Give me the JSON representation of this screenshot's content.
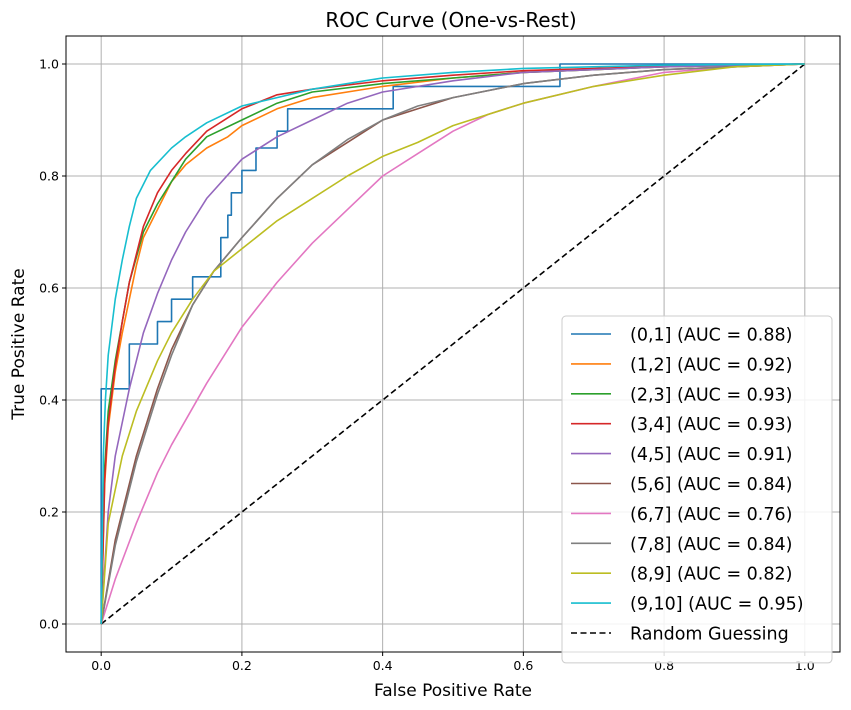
{
  "chart_data": {
    "type": "line",
    "title": "ROC Curve (One-vs-Rest)",
    "xlabel": "False Positive Rate",
    "ylabel": "True Positive Rate",
    "xlim": [
      -0.05,
      1.05
    ],
    "ylim": [
      -0.05,
      1.05
    ],
    "xticks": [
      "0.0",
      "0.2",
      "0.4",
      "0.6",
      "0.8",
      "1.0"
    ],
    "yticks": [
      "0.0",
      "0.2",
      "0.4",
      "0.6",
      "0.8",
      "1.0"
    ],
    "grid": true,
    "legend_position": "lower-right",
    "series": [
      {
        "name": "(0,1] (AUC = 0.88)",
        "color": "#1f77b4",
        "step": true,
        "points": [
          [
            0,
            0
          ],
          [
            0,
            0.42
          ],
          [
            0.04,
            0.42
          ],
          [
            0.04,
            0.5
          ],
          [
            0.08,
            0.5
          ],
          [
            0.08,
            0.54
          ],
          [
            0.1,
            0.54
          ],
          [
            0.1,
            0.58
          ],
          [
            0.13,
            0.58
          ],
          [
            0.13,
            0.62
          ],
          [
            0.17,
            0.62
          ],
          [
            0.17,
            0.69
          ],
          [
            0.18,
            0.69
          ],
          [
            0.18,
            0.73
          ],
          [
            0.185,
            0.73
          ],
          [
            0.185,
            0.77
          ],
          [
            0.2,
            0.77
          ],
          [
            0.2,
            0.81
          ],
          [
            0.22,
            0.81
          ],
          [
            0.22,
            0.85
          ],
          [
            0.25,
            0.85
          ],
          [
            0.25,
            0.88
          ],
          [
            0.265,
            0.88
          ],
          [
            0.265,
            0.92
          ],
          [
            0.415,
            0.92
          ],
          [
            0.415,
            0.96
          ],
          [
            0.652,
            0.96
          ],
          [
            0.652,
            0.98
          ],
          [
            0.652,
            1.0
          ],
          [
            1.0,
            1.0
          ]
        ]
      },
      {
        "name": "(1,2] (AUC = 0.92)",
        "color": "#ff7f0e",
        "step": false,
        "points": [
          [
            0,
            0
          ],
          [
            0.005,
            0.25
          ],
          [
            0.01,
            0.35
          ],
          [
            0.02,
            0.45
          ],
          [
            0.03,
            0.52
          ],
          [
            0.04,
            0.58
          ],
          [
            0.05,
            0.64
          ],
          [
            0.06,
            0.69
          ],
          [
            0.08,
            0.74
          ],
          [
            0.1,
            0.79
          ],
          [
            0.12,
            0.82
          ],
          [
            0.15,
            0.85
          ],
          [
            0.18,
            0.87
          ],
          [
            0.2,
            0.89
          ],
          [
            0.25,
            0.92
          ],
          [
            0.3,
            0.94
          ],
          [
            0.4,
            0.96
          ],
          [
            0.5,
            0.975
          ],
          [
            0.6,
            0.985
          ],
          [
            0.8,
            0.995
          ],
          [
            1.0,
            1.0
          ]
        ]
      },
      {
        "name": "(2,3] (AUC = 0.93)",
        "color": "#2ca02c",
        "step": false,
        "points": [
          [
            0,
            0
          ],
          [
            0.005,
            0.28
          ],
          [
            0.01,
            0.38
          ],
          [
            0.02,
            0.47
          ],
          [
            0.03,
            0.54
          ],
          [
            0.04,
            0.61
          ],
          [
            0.06,
            0.7
          ],
          [
            0.08,
            0.75
          ],
          [
            0.1,
            0.79
          ],
          [
            0.12,
            0.83
          ],
          [
            0.15,
            0.87
          ],
          [
            0.2,
            0.9
          ],
          [
            0.25,
            0.93
          ],
          [
            0.3,
            0.95
          ],
          [
            0.4,
            0.965
          ],
          [
            0.5,
            0.975
          ],
          [
            0.6,
            0.985
          ],
          [
            0.8,
            0.995
          ],
          [
            1.0,
            1.0
          ]
        ]
      },
      {
        "name": "(3,4] (AUC = 0.93)",
        "color": "#d62728",
        "step": false,
        "points": [
          [
            0,
            0
          ],
          [
            0.005,
            0.26
          ],
          [
            0.01,
            0.36
          ],
          [
            0.02,
            0.46
          ],
          [
            0.03,
            0.54
          ],
          [
            0.04,
            0.61
          ],
          [
            0.06,
            0.71
          ],
          [
            0.08,
            0.77
          ],
          [
            0.1,
            0.81
          ],
          [
            0.12,
            0.84
          ],
          [
            0.15,
            0.88
          ],
          [
            0.2,
            0.92
          ],
          [
            0.25,
            0.945
          ],
          [
            0.3,
            0.955
          ],
          [
            0.4,
            0.97
          ],
          [
            0.5,
            0.98
          ],
          [
            0.6,
            0.988
          ],
          [
            0.8,
            0.996
          ],
          [
            1.0,
            1.0
          ]
        ]
      },
      {
        "name": "(4,5] (AUC = 0.91)",
        "color": "#9467bd",
        "step": false,
        "points": [
          [
            0,
            0
          ],
          [
            0.01,
            0.2
          ],
          [
            0.02,
            0.3
          ],
          [
            0.04,
            0.42
          ],
          [
            0.06,
            0.52
          ],
          [
            0.08,
            0.59
          ],
          [
            0.1,
            0.65
          ],
          [
            0.12,
            0.7
          ],
          [
            0.15,
            0.76
          ],
          [
            0.2,
            0.83
          ],
          [
            0.25,
            0.87
          ],
          [
            0.3,
            0.9
          ],
          [
            0.35,
            0.93
          ],
          [
            0.4,
            0.95
          ],
          [
            0.5,
            0.97
          ],
          [
            0.6,
            0.985
          ],
          [
            0.8,
            0.995
          ],
          [
            1.0,
            1.0
          ]
        ]
      },
      {
        "name": "(5,6] (AUC = 0.84)",
        "color": "#8c564b",
        "step": false,
        "points": [
          [
            0,
            0
          ],
          [
            0.02,
            0.15
          ],
          [
            0.05,
            0.3
          ],
          [
            0.08,
            0.42
          ],
          [
            0.1,
            0.49
          ],
          [
            0.13,
            0.57
          ],
          [
            0.16,
            0.63
          ],
          [
            0.2,
            0.69
          ],
          [
            0.25,
            0.76
          ],
          [
            0.3,
            0.82
          ],
          [
            0.35,
            0.86
          ],
          [
            0.4,
            0.9
          ],
          [
            0.45,
            0.92
          ],
          [
            0.5,
            0.94
          ],
          [
            0.6,
            0.965
          ],
          [
            0.7,
            0.98
          ],
          [
            0.8,
            0.99
          ],
          [
            1.0,
            1.0
          ]
        ]
      },
      {
        "name": "(6,7] (AUC = 0.76)",
        "color": "#e377c2",
        "step": false,
        "points": [
          [
            0,
            0
          ],
          [
            0.02,
            0.08
          ],
          [
            0.05,
            0.18
          ],
          [
            0.08,
            0.27
          ],
          [
            0.1,
            0.32
          ],
          [
            0.15,
            0.43
          ],
          [
            0.2,
            0.53
          ],
          [
            0.25,
            0.61
          ],
          [
            0.3,
            0.68
          ],
          [
            0.35,
            0.74
          ],
          [
            0.4,
            0.8
          ],
          [
            0.45,
            0.84
          ],
          [
            0.5,
            0.88
          ],
          [
            0.55,
            0.91
          ],
          [
            0.6,
            0.93
          ],
          [
            0.7,
            0.96
          ],
          [
            0.8,
            0.985
          ],
          [
            0.9,
            0.995
          ],
          [
            1.0,
            1.0
          ]
        ]
      },
      {
        "name": "(7,8] (AUC = 0.84)",
        "color": "#7f7f7f",
        "step": false,
        "points": [
          [
            0,
            0
          ],
          [
            0.02,
            0.14
          ],
          [
            0.05,
            0.29
          ],
          [
            0.08,
            0.41
          ],
          [
            0.1,
            0.48
          ],
          [
            0.13,
            0.57
          ],
          [
            0.16,
            0.63
          ],
          [
            0.2,
            0.69
          ],
          [
            0.25,
            0.76
          ],
          [
            0.3,
            0.82
          ],
          [
            0.35,
            0.865
          ],
          [
            0.4,
            0.9
          ],
          [
            0.45,
            0.925
          ],
          [
            0.5,
            0.94
          ],
          [
            0.6,
            0.965
          ],
          [
            0.7,
            0.98
          ],
          [
            0.8,
            0.99
          ],
          [
            1.0,
            1.0
          ]
        ]
      },
      {
        "name": "(8,9] (AUC = 0.82)",
        "color": "#bcbd22",
        "step": false,
        "points": [
          [
            0,
            0
          ],
          [
            0.01,
            0.18
          ],
          [
            0.03,
            0.3
          ],
          [
            0.05,
            0.38
          ],
          [
            0.08,
            0.47
          ],
          [
            0.1,
            0.52
          ],
          [
            0.13,
            0.58
          ],
          [
            0.16,
            0.63
          ],
          [
            0.2,
            0.67
          ],
          [
            0.25,
            0.72
          ],
          [
            0.3,
            0.76
          ],
          [
            0.35,
            0.8
          ],
          [
            0.4,
            0.835
          ],
          [
            0.45,
            0.86
          ],
          [
            0.5,
            0.89
          ],
          [
            0.6,
            0.93
          ],
          [
            0.7,
            0.96
          ],
          [
            0.8,
            0.98
          ],
          [
            0.9,
            0.995
          ],
          [
            1.0,
            1.0
          ]
        ]
      },
      {
        "name": "(9,10] (AUC = 0.95)",
        "color": "#17becf",
        "step": false,
        "points": [
          [
            0,
            0
          ],
          [
            0.003,
            0.3
          ],
          [
            0.006,
            0.4
          ],
          [
            0.01,
            0.48
          ],
          [
            0.02,
            0.58
          ],
          [
            0.03,
            0.65
          ],
          [
            0.04,
            0.71
          ],
          [
            0.05,
            0.76
          ],
          [
            0.07,
            0.81
          ],
          [
            0.1,
            0.85
          ],
          [
            0.12,
            0.87
          ],
          [
            0.15,
            0.895
          ],
          [
            0.2,
            0.925
          ],
          [
            0.25,
            0.94
          ],
          [
            0.3,
            0.955
          ],
          [
            0.4,
            0.975
          ],
          [
            0.5,
            0.985
          ],
          [
            0.6,
            0.992
          ],
          [
            0.8,
            0.998
          ],
          [
            1.0,
            1.0
          ]
        ]
      },
      {
        "name": "Random Guessing",
        "color": "#000000",
        "step": false,
        "dashed": true,
        "points": [
          [
            0,
            0
          ],
          [
            1,
            1
          ]
        ]
      }
    ]
  }
}
